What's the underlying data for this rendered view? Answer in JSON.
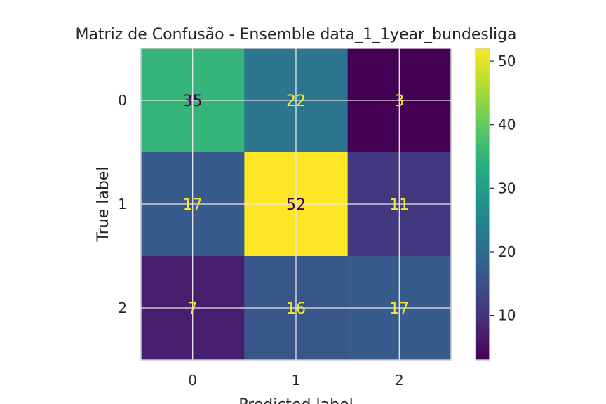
{
  "chart_data": {
    "type": "heatmap",
    "title": "Matriz de Confusão - Ensemble data_1_1year_bundesliga",
    "xlabel": "Predicted label",
    "ylabel": "True label",
    "x_categories": [
      "0",
      "1",
      "2"
    ],
    "y_categories": [
      "0",
      "1",
      "2"
    ],
    "matrix": [
      [
        35,
        22,
        3
      ],
      [
        17,
        52,
        11
      ],
      [
        7,
        16,
        17
      ]
    ],
    "colormap": "viridis",
    "colorbar": {
      "range": [
        3,
        52
      ],
      "ticks": [
        10,
        20,
        30,
        40,
        50
      ]
    },
    "grid": true,
    "text_colors": {
      "light": "#fde725",
      "dark": "#440154"
    }
  }
}
